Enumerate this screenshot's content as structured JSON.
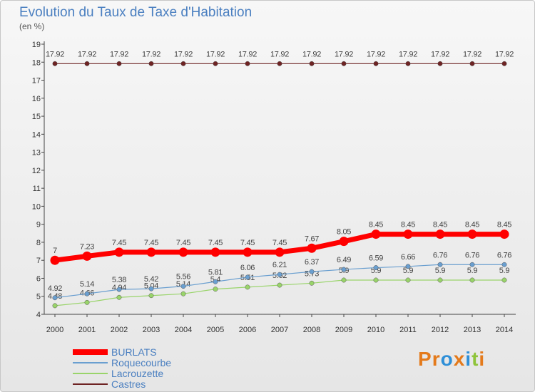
{
  "title": "Evolution du Taux de Taxe d'Habitation",
  "subtitle": "(en %)",
  "logo": {
    "letters": [
      "P",
      "r",
      "o",
      "x",
      "i",
      "t",
      "i"
    ],
    "colors": [
      "#e47a1b",
      "#e47a1b",
      "#2e8fd8",
      "#e47a1b",
      "#2e8fd8",
      "#8fc43b",
      "#e47a1b"
    ]
  },
  "chart_data": {
    "type": "line",
    "x": [
      "2000",
      "2001",
      "2002",
      "2003",
      "2004",
      "2005",
      "2006",
      "2007",
      "2008",
      "2009",
      "2010",
      "2011",
      "2012",
      "2013",
      "2014"
    ],
    "ylim": [
      4,
      19
    ],
    "yticks": [
      "4",
      "5",
      "6",
      "7",
      "8",
      "9",
      "10",
      "11",
      "12",
      "13",
      "14",
      "15",
      "16",
      "17",
      "18",
      "19"
    ],
    "grid": false,
    "legend_position": "bottom-left",
    "series": [
      {
        "name": "Castres",
        "color": "#6e2323",
        "width": 1.2,
        "values": [
          17.92,
          17.92,
          17.92,
          17.92,
          17.92,
          17.92,
          17.92,
          17.92,
          17.92,
          17.92,
          17.92,
          17.92,
          17.92,
          17.92,
          17.92
        ],
        "labels": [
          "17.92",
          "17.92",
          "17.92",
          "17.92",
          "17.92",
          "17.92",
          "17.92",
          "17.92",
          "17.92",
          "17.92",
          "17.92",
          "17.92",
          "17.92",
          "17.92",
          "17.92"
        ]
      },
      {
        "name": "Lacrouzette",
        "color": "#99d46a",
        "width": 1.2,
        "values": [
          4.48,
          4.66,
          4.94,
          5.04,
          5.14,
          5.4,
          5.51,
          5.62,
          5.73,
          5.9,
          5.9,
          5.9,
          5.9,
          5.9,
          5.9
        ],
        "labels": [
          "4.48",
          "4.66",
          "4.94",
          "5.04",
          "5.14",
          "5.4",
          "5.51",
          "5.62",
          "5.73",
          "5.9",
          "5.9",
          "5.9",
          "5.9",
          "5.9",
          "5.9"
        ]
      },
      {
        "name": "Roquecourbe",
        "color": "#6a9fd0",
        "width": 1.2,
        "values": [
          4.92,
          5.14,
          5.38,
          5.42,
          5.56,
          5.81,
          6.06,
          6.21,
          6.37,
          6.49,
          6.59,
          6.66,
          6.76,
          6.76,
          6.76
        ],
        "labels": [
          "4.92",
          "5.14",
          "5.38",
          "5.42",
          "5.56",
          "5.81",
          "6.06",
          "6.21",
          "6.37",
          "6.49",
          "6.59",
          "6.66",
          "6.76",
          "6.76",
          "6.76"
        ]
      },
      {
        "name": "BURLATS",
        "color": "#ff0000",
        "width": 7,
        "values": [
          7,
          7.23,
          7.45,
          7.45,
          7.45,
          7.45,
          7.45,
          7.45,
          7.67,
          8.05,
          8.45,
          8.45,
          8.45,
          8.45,
          8.45
        ],
        "labels": [
          "7",
          "7.23",
          "7.45",
          "7.45",
          "7.45",
          "7.45",
          "7.45",
          "7.45",
          "7.67",
          "8.05",
          "8.45",
          "8.45",
          "8.45",
          "8.45",
          "8.45"
        ]
      }
    ],
    "legend": [
      "BURLATS",
      "Roquecourbe",
      "Lacrouzette",
      "Castres"
    ]
  }
}
